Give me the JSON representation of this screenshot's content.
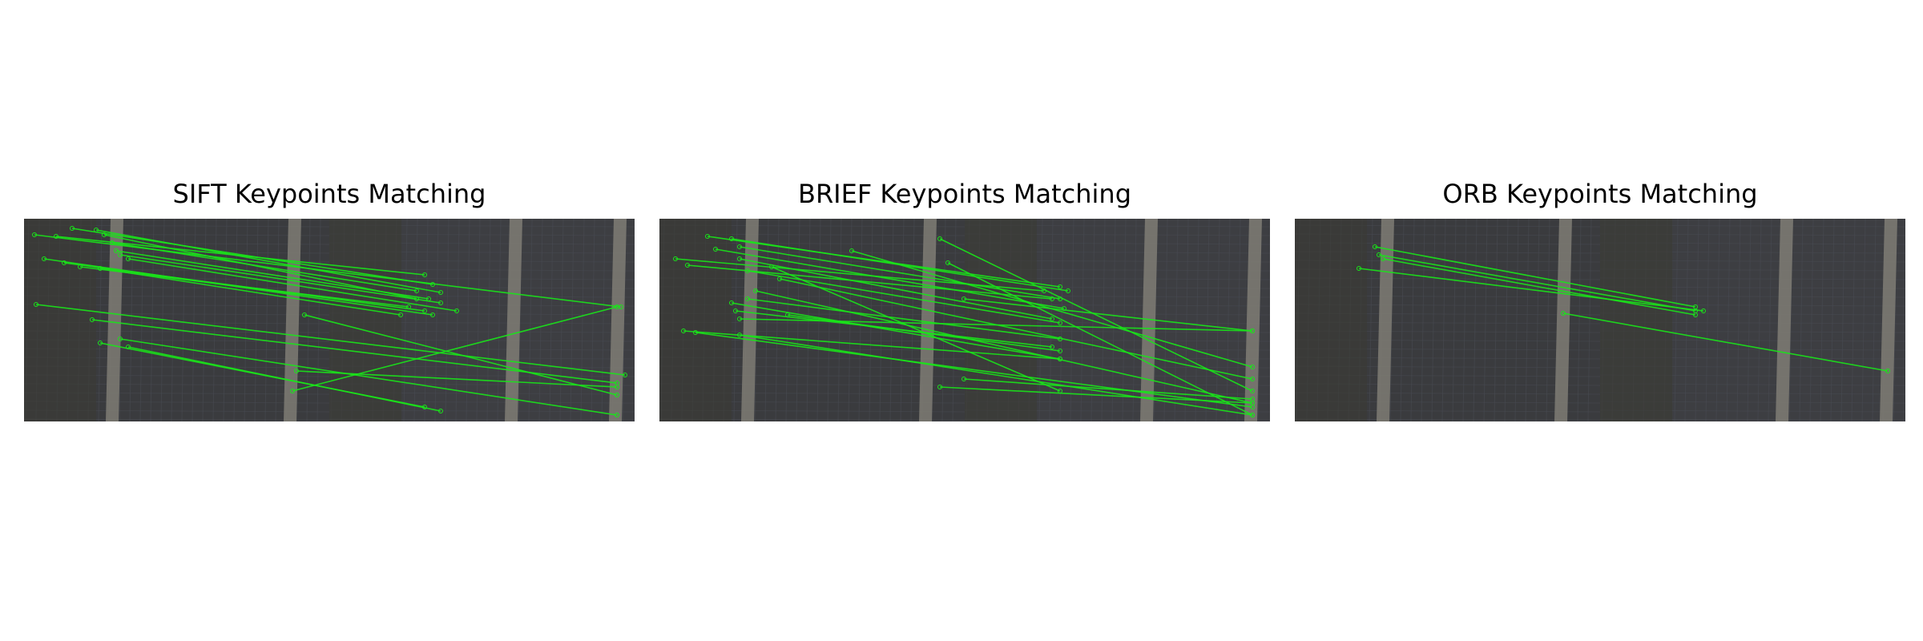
{
  "panels": [
    {
      "title": "SIFT Keypoints Matching",
      "match_color": "#19e619"
    },
    {
      "title": "BRIEF Keypoints Matching",
      "match_color": "#19e619"
    },
    {
      "title": "ORB Keypoints Matching",
      "match_color": "#19e619"
    }
  ],
  "colors": {
    "background": "#ffffff",
    "image_dark": "#3a3b3e",
    "pole": "#8a877f",
    "match_line": "#19e619"
  }
}
